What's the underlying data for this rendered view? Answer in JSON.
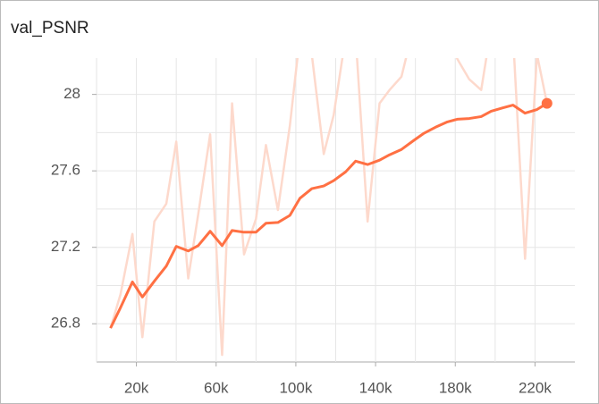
{
  "chart_data": {
    "type": "line",
    "title": "val_PSNR",
    "x": [
      7000,
      12000,
      18000,
      23000,
      29000,
      35000,
      40000,
      46000,
      51000,
      57000,
      63000,
      68000,
      74000,
      80000,
      85000,
      91000,
      97000,
      102000,
      108000,
      114000,
      119000,
      125000,
      130000,
      136000,
      142000,
      147000,
      153000,
      159000,
      164000,
      170000,
      176000,
      181000,
      187000,
      193000,
      198000,
      204000,
      209000,
      215000,
      221000,
      226000
    ],
    "series": [
      {
        "color": "#fdd9cc",
        "values": [
          26.777,
          26.953,
          27.27,
          26.73,
          27.335,
          27.428,
          27.753,
          27.037,
          27.372,
          27.791,
          26.637,
          27.953,
          27.163,
          27.349,
          27.735,
          27.395,
          27.837,
          28.302,
          28.209,
          27.688,
          27.893,
          28.302,
          28.302,
          27.335,
          27.953,
          28.023,
          28.093,
          28.349,
          28.349,
          28.349,
          28.349,
          28.186,
          28.079,
          28.023,
          28.349,
          28.349,
          28.302,
          27.14,
          28.209,
          27.953
        ]
      },
      {
        "color": "#ff7043",
        "values": [
          26.777,
          26.884,
          27.019,
          26.94,
          27.023,
          27.102,
          27.205,
          27.181,
          27.209,
          27.284,
          27.209,
          27.288,
          27.279,
          27.279,
          27.326,
          27.33,
          27.367,
          27.456,
          27.507,
          27.521,
          27.549,
          27.595,
          27.651,
          27.633,
          27.656,
          27.684,
          27.712,
          27.758,
          27.795,
          27.828,
          27.856,
          27.87,
          27.874,
          27.884,
          27.912,
          27.93,
          27.944,
          27.902,
          27.921,
          27.953
        ]
      }
    ],
    "xlim": [
      0,
      240000
    ],
    "ylim": [
      26.6,
      28.19
    ],
    "xticks": [
      {
        "value": 20000,
        "label": "20k"
      },
      {
        "value": 60000,
        "label": "60k"
      },
      {
        "value": 100000,
        "label": "100k"
      },
      {
        "value": 140000,
        "label": "140k"
      },
      {
        "value": 180000,
        "label": "180k"
      },
      {
        "value": 220000,
        "label": "220k"
      }
    ],
    "yticks": [
      26.8,
      27.2,
      27.6,
      28
    ],
    "xgrid": [
      0,
      20000,
      40000,
      60000,
      80000,
      100000,
      120000,
      140000,
      160000,
      180000,
      200000,
      220000
    ],
    "ygrid": [
      26.8,
      27,
      27.2,
      27.4,
      27.6,
      27.8,
      28
    ],
    "grid": true
  }
}
